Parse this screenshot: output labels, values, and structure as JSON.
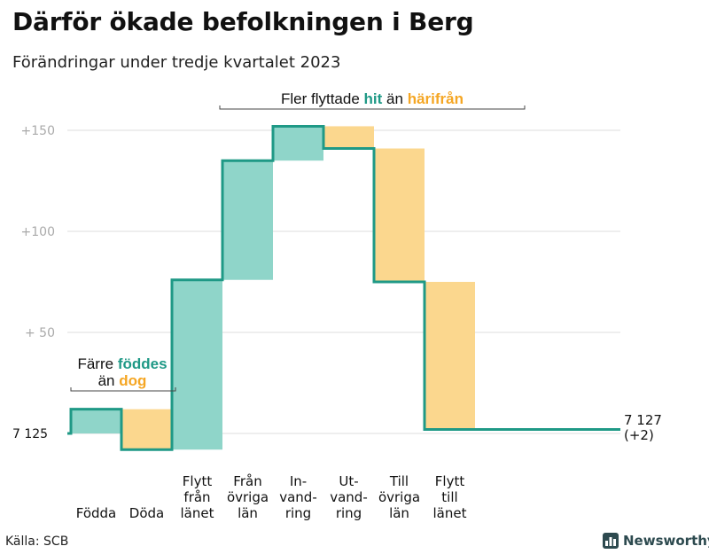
{
  "title": "Därför ökade befolkningen i Berg",
  "subtitle": "Förändringar under tredje kvartalet 2023",
  "source": "Källa: SCB",
  "brand": "Newsworthy",
  "colors": {
    "increase": "#8fd5c9",
    "decrease": "#fbd78e",
    "line": "#1f9986",
    "teal_text": "#1f9986",
    "orange_text": "#f5a623",
    "grid": "#dddddd"
  },
  "annotations": {
    "top": {
      "before": "Fler flyttade",
      "hit": "hit",
      "mid": "än",
      "harifran": "härifrån"
    },
    "left": {
      "before": "Färre",
      "foddes": "föddes",
      "mid": "än",
      "dog": "dog"
    }
  },
  "end_label": {
    "value": "7 127",
    "change": "(+2)"
  },
  "chart_data": {
    "type": "waterfall",
    "title": "Därför ökade befolkningen i Berg",
    "subtitle": "Förändringar under tredje kvartalet 2023",
    "baseline": 7125,
    "y_ticks": [
      {
        "label": "7  125",
        "value": 0
      },
      {
        "label": "+  50",
        "value": 50
      },
      {
        "label": "+100",
        "value": 100
      },
      {
        "label": "+150",
        "value": 150
      }
    ],
    "ylim": [
      0,
      150
    ],
    "steps": [
      {
        "label": "Födda",
        "value": 12,
        "kind": "increase"
      },
      {
        "label": "Döda",
        "value": -20,
        "kind": "decrease"
      },
      {
        "label": "Flytt\nfrån\nlänet",
        "value": 84,
        "kind": "increase"
      },
      {
        "label": "Från\növriga\nlän",
        "value": 59,
        "kind": "increase"
      },
      {
        "label": "In-\nvand-\nring",
        "value": 17,
        "kind": "increase"
      },
      {
        "label": "Ut-\nvand-\nring",
        "value": -11,
        "kind": "decrease"
      },
      {
        "label": "Till\növriga\nlän",
        "value": -66,
        "kind": "decrease"
      },
      {
        "label": "Flytt\ntill\nlänet",
        "value": -73,
        "kind": "decrease"
      }
    ],
    "end_value": 7127,
    "end_change": 2
  }
}
